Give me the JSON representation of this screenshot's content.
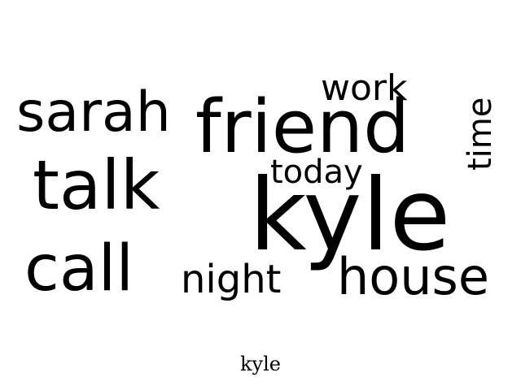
{
  "words": {
    "kyle": "kyle",
    "friend": "friend",
    "talk": "talk",
    "call": "call",
    "sarah": "sarah",
    "house": "house",
    "night": "night",
    "work": "work",
    "today": "today",
    "time": "time"
  },
  "caption": "kyle",
  "colors": {
    "text": "#000000",
    "background": "#ffffff"
  }
}
